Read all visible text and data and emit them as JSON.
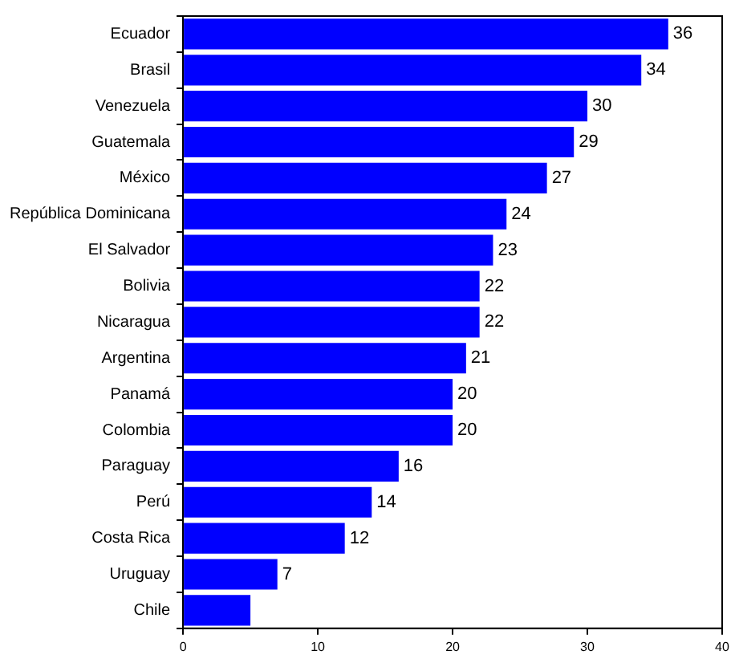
{
  "chart_data": {
    "type": "bar",
    "orientation": "horizontal",
    "categories": [
      "Ecuador",
      "Brasil",
      "Venezuela",
      "Guatemala",
      "México",
      "República Dominicana",
      "El Salvador",
      "Bolivia",
      "Nicaragua",
      "Argentina",
      "Panamá",
      "Colombia",
      "Paraguay",
      "Perú",
      "Costa Rica",
      "Uruguay",
      "Chile"
    ],
    "values": [
      36,
      34,
      30,
      29,
      27,
      24,
      23,
      22,
      22,
      21,
      20,
      20,
      16,
      14,
      12,
      7,
      5
    ],
    "value_labels": [
      "36",
      "34",
      "30",
      "29",
      "27",
      "24",
      "23",
      "22",
      "22",
      "21",
      "20",
      "20",
      "16",
      "14",
      "12",
      "7",
      null
    ],
    "color": "#0000ff",
    "xlim": [
      0,
      40
    ],
    "xticks": [
      0,
      10,
      20,
      30,
      40
    ],
    "grid": false,
    "legend": false
  }
}
